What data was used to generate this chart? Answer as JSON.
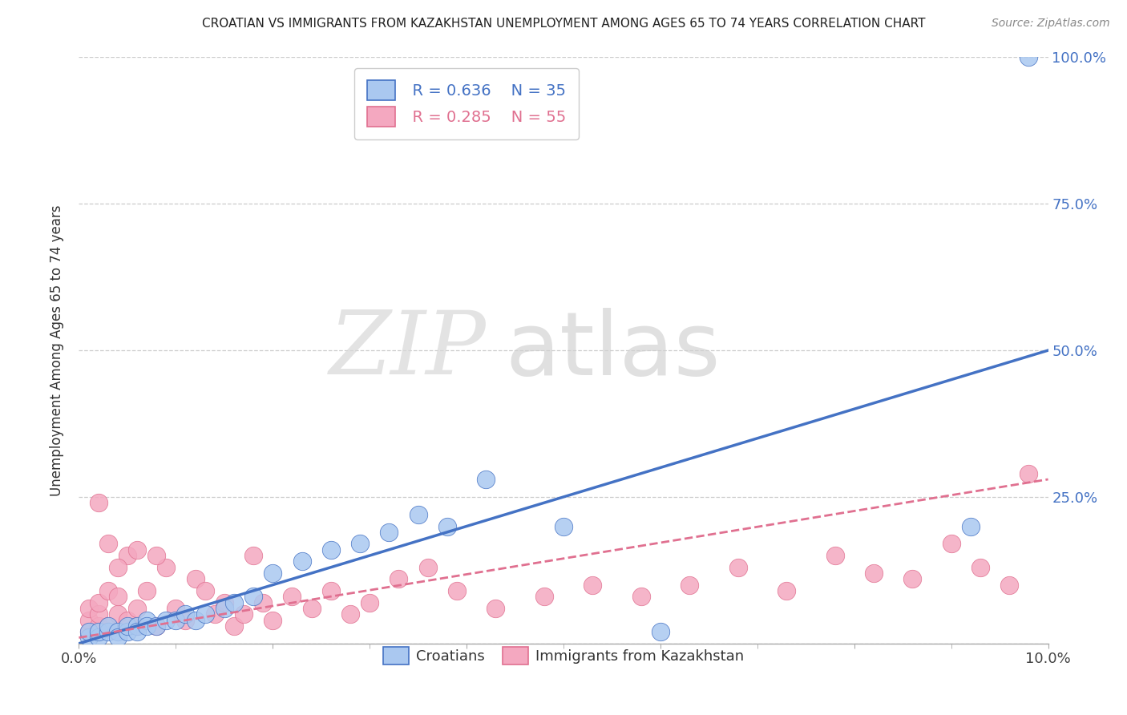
{
  "title": "CROATIAN VS IMMIGRANTS FROM KAZAKHSTAN UNEMPLOYMENT AMONG AGES 65 TO 74 YEARS CORRELATION CHART",
  "source": "Source: ZipAtlas.com",
  "ylabel": "Unemployment Among Ages 65 to 74 years",
  "xlim": [
    0.0,
    0.1
  ],
  "ylim": [
    0.0,
    1.0
  ],
  "xticks": [
    0.0,
    0.02,
    0.04,
    0.06,
    0.08,
    0.1
  ],
  "xticklabels": [
    "0.0%",
    "",
    "",
    "",
    "",
    "10.0%"
  ],
  "yticks": [
    0.0,
    0.25,
    0.5,
    0.75,
    1.0
  ],
  "yticklabels_right": [
    "",
    "25.0%",
    "50.0%",
    "75.0%",
    "100.0%"
  ],
  "legend_croatians": "Croatians",
  "legend_kazakhstan": "Immigrants from Kazakhstan",
  "r_croatians": "R = 0.636",
  "n_croatians": "N = 35",
  "r_kazakhstan": "R = 0.285",
  "n_kazakhstan": "N = 55",
  "croatians_color": "#aac8f0",
  "kazakhstan_color": "#f4a8c0",
  "croatians_line_color": "#4472c4",
  "kazakhstan_line_color": "#e07090",
  "watermark_zip": "ZIP",
  "watermark_atlas": "atlas",
  "blue_line_x0": 0.0,
  "blue_line_y0": 0.0,
  "blue_line_x1": 0.1,
  "blue_line_y1": 0.5,
  "pink_line_x0": 0.0,
  "pink_line_y0": 0.01,
  "pink_line_x1": 0.1,
  "pink_line_y1": 0.28,
  "croatians_x": [
    0.001,
    0.001,
    0.002,
    0.002,
    0.003,
    0.003,
    0.004,
    0.004,
    0.005,
    0.005,
    0.006,
    0.006,
    0.007,
    0.007,
    0.008,
    0.009,
    0.01,
    0.011,
    0.012,
    0.013,
    0.015,
    0.016,
    0.018,
    0.02,
    0.023,
    0.026,
    0.029,
    0.032,
    0.035,
    0.038,
    0.042,
    0.05,
    0.06,
    0.092,
    0.098
  ],
  "croatians_y": [
    0.01,
    0.02,
    0.01,
    0.02,
    0.02,
    0.03,
    0.02,
    0.01,
    0.02,
    0.03,
    0.03,
    0.02,
    0.04,
    0.03,
    0.03,
    0.04,
    0.04,
    0.05,
    0.04,
    0.05,
    0.06,
    0.07,
    0.08,
    0.12,
    0.14,
    0.16,
    0.17,
    0.19,
    0.22,
    0.2,
    0.28,
    0.2,
    0.02,
    0.2,
    1.0
  ],
  "kazakhstan_x": [
    0.001,
    0.001,
    0.001,
    0.002,
    0.002,
    0.002,
    0.003,
    0.003,
    0.004,
    0.004,
    0.005,
    0.005,
    0.006,
    0.006,
    0.007,
    0.008,
    0.009,
    0.01,
    0.011,
    0.012,
    0.013,
    0.014,
    0.015,
    0.016,
    0.017,
    0.018,
    0.019,
    0.02,
    0.022,
    0.024,
    0.026,
    0.028,
    0.03,
    0.033,
    0.036,
    0.039,
    0.043,
    0.048,
    0.053,
    0.058,
    0.063,
    0.068,
    0.073,
    0.078,
    0.082,
    0.086,
    0.09,
    0.093,
    0.096,
    0.098,
    0.002,
    0.003,
    0.004,
    0.006,
    0.008
  ],
  "kazakhstan_y": [
    0.02,
    0.04,
    0.06,
    0.03,
    0.05,
    0.07,
    0.03,
    0.09,
    0.05,
    0.08,
    0.04,
    0.15,
    0.06,
    0.03,
    0.09,
    0.03,
    0.13,
    0.06,
    0.04,
    0.11,
    0.09,
    0.05,
    0.07,
    0.03,
    0.05,
    0.15,
    0.07,
    0.04,
    0.08,
    0.06,
    0.09,
    0.05,
    0.07,
    0.11,
    0.13,
    0.09,
    0.06,
    0.08,
    0.1,
    0.08,
    0.1,
    0.13,
    0.09,
    0.15,
    0.12,
    0.11,
    0.17,
    0.13,
    0.1,
    0.29,
    0.24,
    0.17,
    0.13,
    0.16,
    0.15
  ]
}
